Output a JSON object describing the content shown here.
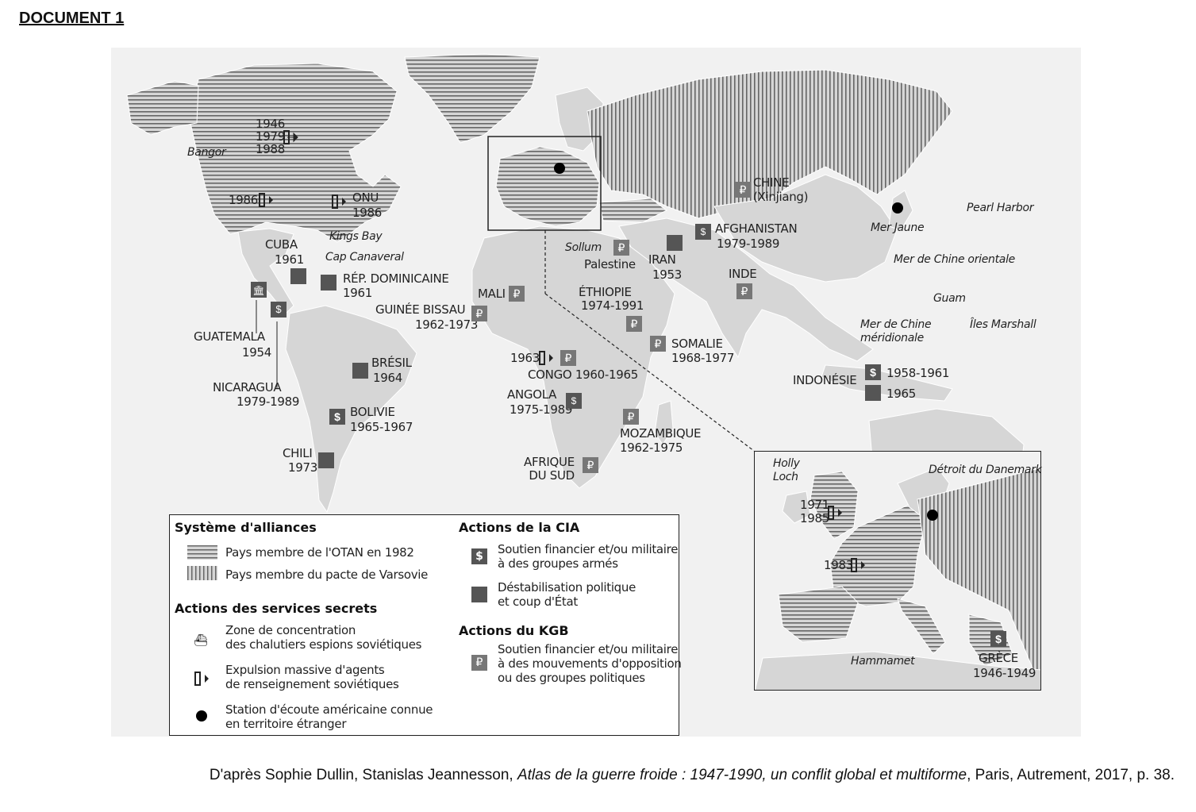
{
  "document_title": "DOCUMENT 1",
  "map_labels": {
    "canada_years": "1946\n1979\n1988",
    "bangor": "Bangor",
    "usa_year": "1986",
    "onu": "ONU",
    "onu_year": "1986",
    "kings_bay": "Kings Bay",
    "cuba": "CUBA",
    "cuba_year": "1961",
    "cap_canaveral": "Cap Canaveral",
    "rep_dominicaine": "RÉP. DOMINICAINE",
    "rep_dominicaine_year": "1961",
    "guatemala": "GUATEMALA",
    "guatemala_year": "1954",
    "nicaragua": "NICARAGUA",
    "nicaragua_year": "1979-1989",
    "bresil": "BRÉSIL",
    "bresil_year": "1964",
    "bolivie": "BOLIVIE",
    "bolivie_year": "1965-1967",
    "chili": "CHILI",
    "chili_year": "1973",
    "mali": "MALI",
    "guinee_bissau": "GUINÉE BISSAU",
    "guinee_bissau_year": "1962-1973",
    "sollum": "Sollum",
    "palestine": "Palestine",
    "iran": "IRAN",
    "iran_year": "1953",
    "afghanistan": "AFGHANISTAN",
    "afghanistan_year": "1979-1989",
    "chine": "CHINE",
    "chine_sub": "(Xinjiang)",
    "inde": "INDE",
    "ethiopie": "ÉTHIOPIE",
    "ethiopie_year": "1974-1991",
    "somalie": "SOMALIE",
    "somalie_year": "1968-1977",
    "congo_year_expulsion": "1963",
    "congo": "CONGO 1960-1965",
    "angola": "ANGOLA",
    "angola_year": "1975-1989",
    "mozambique": "MOZAMBIQUE",
    "mozambique_year": "1962-1975",
    "afrique_du_sud": "AFRIQUE\nDU SUD",
    "indonesie": "INDONÉSIE",
    "indonesie_year1": "1958-1961",
    "indonesie_year2": "1965",
    "pearl_harbor": "Pearl Harbor",
    "mer_jaune": "Mer Jaune",
    "mer_chine_orientale": "Mer de Chine orientale",
    "guam": "Guam",
    "mer_chine_meridionale": "Mer de Chine\nméridionale",
    "iles_marshall": "Îles Marshall"
  },
  "inset_labels": {
    "holly_loch": "Holly\nLoch",
    "detroit_danemark": "Détroit du Danemark",
    "uk_years": "1971\n1985",
    "france_year": "1983",
    "hammamet": "Hammamet",
    "grece": "GRÈCE",
    "grece_year": "1946-1949"
  },
  "legend": {
    "alliances_title": "Système d'alliances",
    "otan": "Pays membre de l'OTAN en 1982",
    "varsovie": "Pays membre du pacte de Varsovie",
    "services_title": "Actions des services secrets",
    "chalutiers": "Zone de concentration\ndes chalutiers espions soviétiques",
    "expulsion": "Expulsion massive d'agents\nde renseignement soviétiques",
    "station": "Station d'écoute américaine connue\nen territoire étranger",
    "cia_title": "Actions de la CIA",
    "cia_soutien": "Soutien financier et/ou militaire\nà des groupes armés",
    "cia_destab": "Déstabilisation politique\net coup d'État",
    "kgb_title": "Actions du KGB",
    "kgb_soutien": "Soutien financier et/ou militaire\nà des mouvements d'opposition\nou des groupes politiques"
  },
  "icons": {
    "cia_support": "dollar-icon",
    "cia_coup": "coup-icon",
    "kgb_support": "ruble-icon",
    "expulsion": "expulsion-arrow-icon",
    "trawler": "trawler-ship-icon",
    "station": "listening-station-dot"
  },
  "colors": {
    "land": "#d6d6d6",
    "hatch": "#6b6b6b",
    "icon_bg": "#555555"
  },
  "caption": {
    "prefix": "D'après Sophie Dullin, Stanislas Jeannesson, ",
    "title": "Atlas de la guerre froide : 1947-1990, un conflit global et multiforme",
    "suffix": ", Paris, Autrement, 2017, p. 38."
  }
}
